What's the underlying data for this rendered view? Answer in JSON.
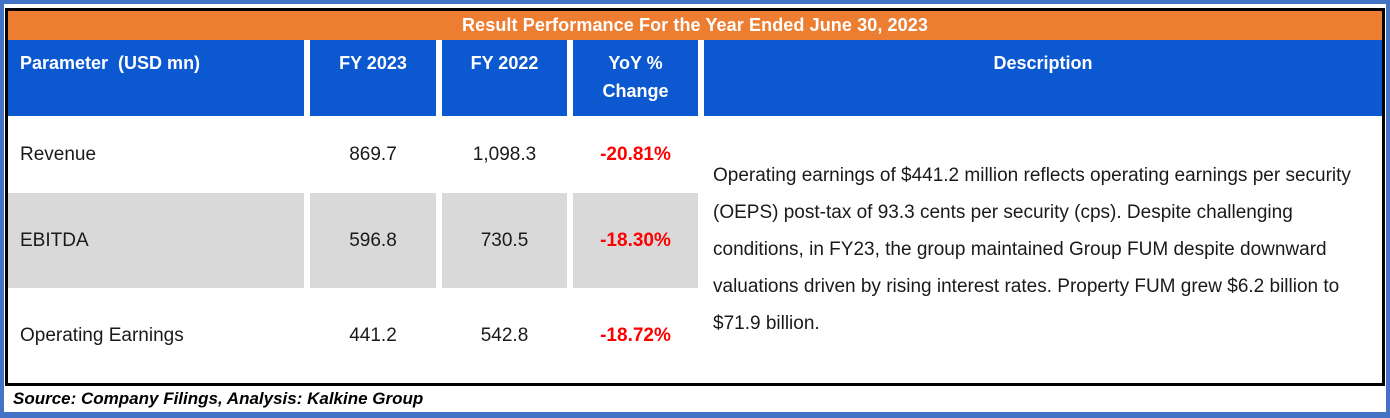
{
  "colors": {
    "title_orange": "#ED7D31",
    "header_blue": "#0B58D0",
    "frame_blue": "#4472C4",
    "row_gray": "#D9D9D9",
    "negative_red": "#FF0000"
  },
  "title_bar": {
    "text": "Result Performance For the Year Ended June 30, 2023"
  },
  "header": {
    "parameter": "Parameter  (USD mn)",
    "fy2023": "FY 2023",
    "fy2022": "FY 2022",
    "yoy": "YoY % Change",
    "description": "Description"
  },
  "rows": [
    {
      "parameter": "Revenue",
      "fy2023": "869.7",
      "fy2022": "1,098.3",
      "yoy": "-20.81%"
    },
    {
      "parameter": "EBITDA",
      "fy2023": "596.8",
      "fy2022": "730.5",
      "yoy": "-18.30%"
    },
    {
      "parameter": "Operating Earnings",
      "fy2023": "441.2",
      "fy2022": "542.8",
      "yoy": "-18.72%"
    }
  ],
  "description": "Operating earnings of $441.2 million reflects operating earnings per security (OEPS) post-tax of 93.3 cents per security (cps). Despite challenging conditions, in FY23, the group maintained Group FUM despite downward valuations driven by rising interest rates. Property FUM grew $6.2 billion to $71.9 billion.",
  "source": "Source: Company Filings, Analysis: Kalkine Group"
}
